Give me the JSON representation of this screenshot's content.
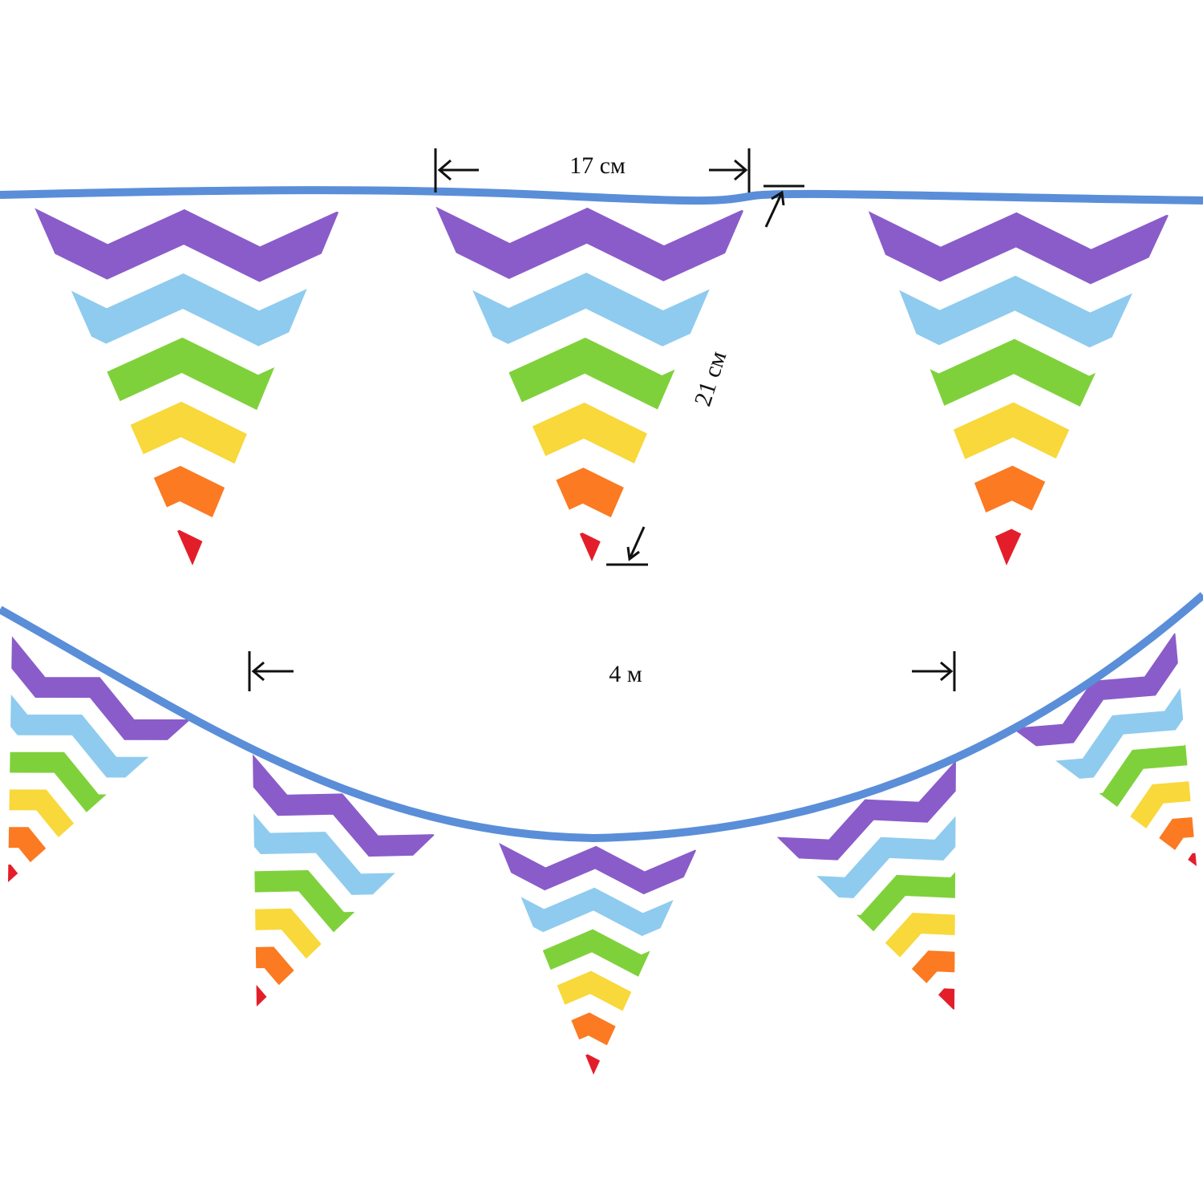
{
  "dimensions": {
    "flag_width": "17 см",
    "flag_height": "21 см",
    "total_length": "4 м"
  },
  "colors": {
    "rope": "#5a8ed8",
    "stripes": [
      "#8a5cc9",
      "#8fcbee",
      "#7fd13b",
      "#f8d83a",
      "#fb7a22",
      "#e31e2a"
    ],
    "background_stripe": "#ffffff",
    "annotation": "#111111"
  }
}
